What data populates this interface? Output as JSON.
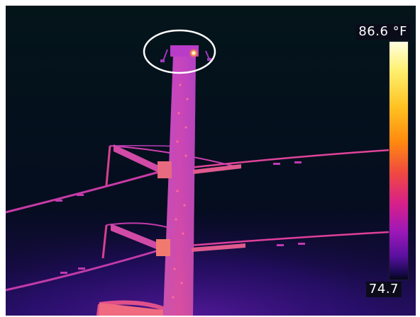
{
  "scale": {
    "max_label": "86.6 °F",
    "min_label": "74.7"
  },
  "colors": {
    "background": "#05121a",
    "structure_hot": "#ff7a2a",
    "structure_mid": "#c03ac0",
    "structure_cool": "#8a2cc0",
    "hotspot": "#fff7d0",
    "highlight_circle": "#ffffff"
  },
  "icons": {
    "hotspot_marker": "circle-annotation"
  }
}
